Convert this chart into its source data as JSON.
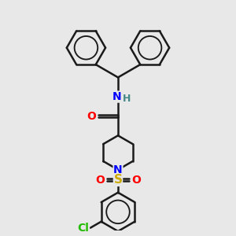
{
  "bg_color": "#e8e8e8",
  "bond_color": "#1a1a1a",
  "bond_width": 1.8,
  "atom_colors": {
    "O": "#ff0000",
    "N": "#0000ff",
    "S": "#ccaa00",
    "Cl": "#22bb00",
    "H": "#448888",
    "C": "#1a1a1a"
  },
  "font_size": 10,
  "fig_size": [
    3.0,
    3.0
  ],
  "dpi": 100
}
